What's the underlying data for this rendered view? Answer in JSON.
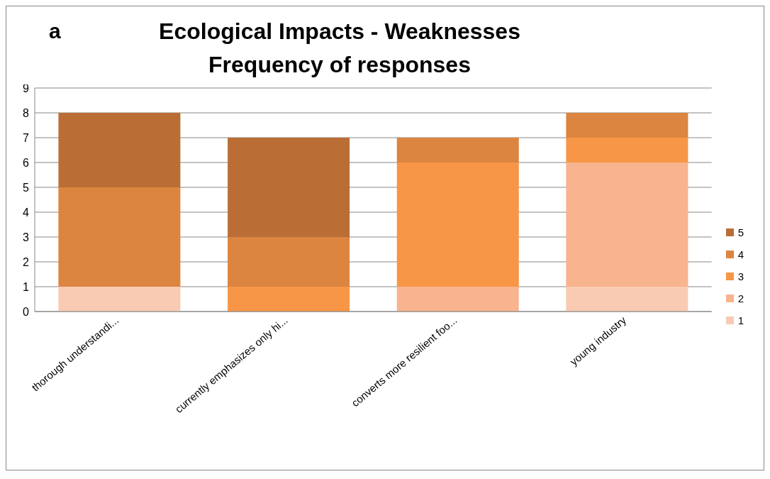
{
  "chart_data": {
    "type": "bar",
    "title": "Ecological Impacts - Weaknesses\nFrequency of responses",
    "annotations": [
      "a"
    ],
    "categories": [
      "thorough understandi...",
      "currently emphasizes only hi...",
      "converts more resilient foo...",
      "young industry"
    ],
    "stacked": true,
    "ylim": [
      0,
      9
    ],
    "yticks": [
      0,
      1,
      2,
      3,
      4,
      5,
      6,
      7,
      8,
      9
    ],
    "grid": "y",
    "legend": "right",
    "series": [
      {
        "name": "1",
        "color": "#f9cbb3",
        "values": [
          1,
          0,
          0,
          1
        ]
      },
      {
        "name": "2",
        "color": "#f7b48e",
        "values": [
          0,
          0,
          1,
          5
        ]
      },
      {
        "name": "3",
        "color": "#f79646",
        "values": [
          0,
          1,
          5,
          1
        ]
      },
      {
        "name": "4",
        "color": "#db8540",
        "values": [
          4,
          2,
          1,
          1
        ]
      },
      {
        "name": "5",
        "color": "#ba6e36",
        "values": [
          3,
          4,
          0,
          0
        ]
      }
    ]
  }
}
